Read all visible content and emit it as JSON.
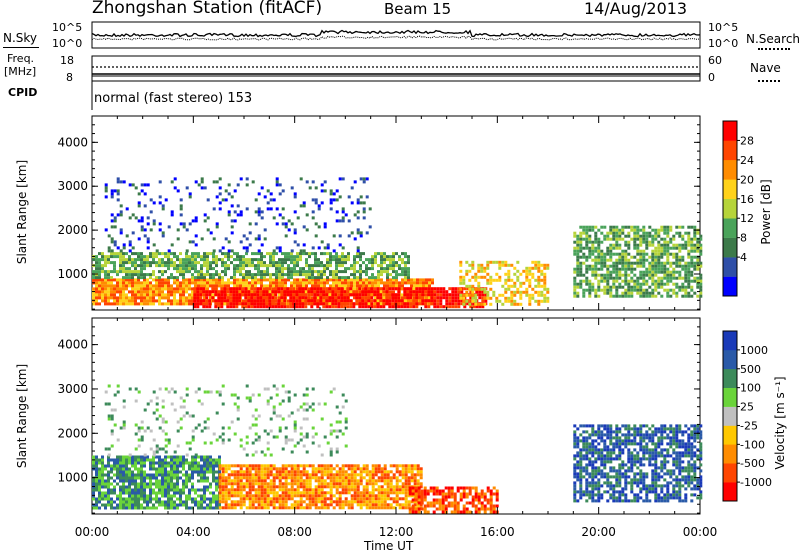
{
  "header": {
    "station": "Zhongshan Station (fitACF)",
    "beam": "Beam 15",
    "date": "14/Aug/2013"
  },
  "top_panels": {
    "nsky_label": "N.Sky",
    "nsearch_label": "N.Search",
    "noise_ticks": [
      "10^5",
      "10^0"
    ],
    "freq_label_1": "Freq.",
    "freq_label_2": "[MHz]",
    "freq_ticks": [
      "18",
      "8"
    ],
    "nave_label": "Nave",
    "nave_ticks": [
      "60",
      "0"
    ],
    "cpid_label": "CPID",
    "cpid_text": "normal (fast stereo) 153"
  },
  "chart_data": [
    {
      "type": "heatmap",
      "name": "power",
      "ylabel": "Slant Range [km]",
      "xlabel": "",
      "xlim": [
        0,
        24
      ],
      "ylim": [
        180,
        4600
      ],
      "yticks": [
        1000,
        2000,
        3000,
        4000
      ],
      "colorbar_label": "Power [dB]",
      "colorbar_ticks": [
        "28",
        "24",
        "20",
        "16",
        "12",
        "8",
        "4"
      ],
      "colors": [
        "#0000ff",
        "#2f4fa8",
        "#3c7a4a",
        "#4aa35a",
        "#b6d43a",
        "#ffd21a",
        "#ff8c00",
        "#ff4500",
        "#ff0000"
      ],
      "bands": [
        {
          "t0": 0.0,
          "t1": 13.5,
          "r0": 300,
          "r1": 900,
          "level": 6,
          "density": 0.9
        },
        {
          "t0": 4.0,
          "t1": 15.5,
          "r0": 250,
          "r1": 700,
          "level": 8,
          "density": 0.85
        },
        {
          "t0": 0.0,
          "t1": 12.5,
          "r0": 900,
          "r1": 1500,
          "level": 3,
          "density": 0.7
        },
        {
          "t0": 14.5,
          "t1": 18.0,
          "r0": 300,
          "r1": 1300,
          "level": 5,
          "density": 0.5
        },
        {
          "t0": 19.0,
          "t1": 24.0,
          "r0": 500,
          "r1": 2100,
          "level": 3,
          "density": 0.7
        },
        {
          "t0": 0.5,
          "t1": 11.0,
          "r0": 1500,
          "r1": 3200,
          "level": 1,
          "density": 0.15
        }
      ]
    },
    {
      "type": "heatmap",
      "name": "velocity",
      "ylabel": "Slant Range [km]",
      "xlabel": "Time UT",
      "xlim": [
        0,
        24
      ],
      "ylim": [
        180,
        4600
      ],
      "yticks": [
        1000,
        2000,
        3000,
        4000
      ],
      "xticks": [
        "00:00",
        "04:00",
        "08:00",
        "12:00",
        "16:00",
        "20:00",
        "00:00"
      ],
      "colorbar_label": "Velocity [m s⁻¹]",
      "colorbar_ticks": [
        "1000",
        "500",
        "100",
        "25",
        "-25",
        "-100",
        "-500",
        "-1000"
      ],
      "colors": [
        "#ff0000",
        "#ff4500",
        "#ff8c00",
        "#ffc800",
        "#c0c0c0",
        "#6ad43a",
        "#3c8a5a",
        "#2a5aa8",
        "#1a3ab8"
      ],
      "bands": [
        {
          "t0": 0.0,
          "t1": 5.0,
          "r0": 300,
          "r1": 1500,
          "level": 6,
          "density": 0.8
        },
        {
          "t0": 5.0,
          "t1": 13.0,
          "r0": 300,
          "r1": 1300,
          "level": 2,
          "density": 0.85
        },
        {
          "t0": 12.5,
          "t1": 16.0,
          "r0": 250,
          "r1": 800,
          "level": 1,
          "density": 0.7
        },
        {
          "t0": 19.0,
          "t1": 24.0,
          "r0": 500,
          "r1": 2200,
          "level": 7,
          "density": 0.7
        },
        {
          "t0": 0.5,
          "t1": 10.0,
          "r0": 1500,
          "r1": 3100,
          "level": 5,
          "density": 0.15
        }
      ]
    }
  ]
}
